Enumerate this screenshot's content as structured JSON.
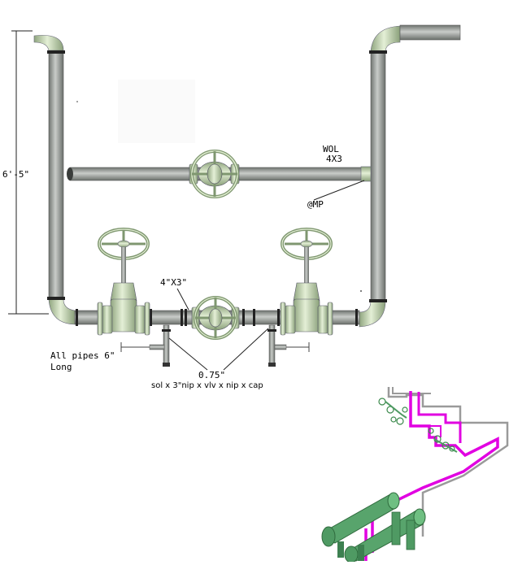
{
  "labels": {
    "dimension": "6'-5\"",
    "wol_line1": "WOL",
    "wol_line2": "4X3",
    "mp": "@MP",
    "reducer": "4\"X3\"",
    "pipes_line1": "All pipes 6\"",
    "pipes_line2": "Long",
    "size": "0.75\"",
    "assembly": "sol x 3\"nip x vlv x nip x cap"
  },
  "colors": {
    "pipe": "#9aa09c",
    "fitting": "#c6dcae",
    "pipe_iso": "#e100e1",
    "exchanger": "#4f9a63"
  }
}
